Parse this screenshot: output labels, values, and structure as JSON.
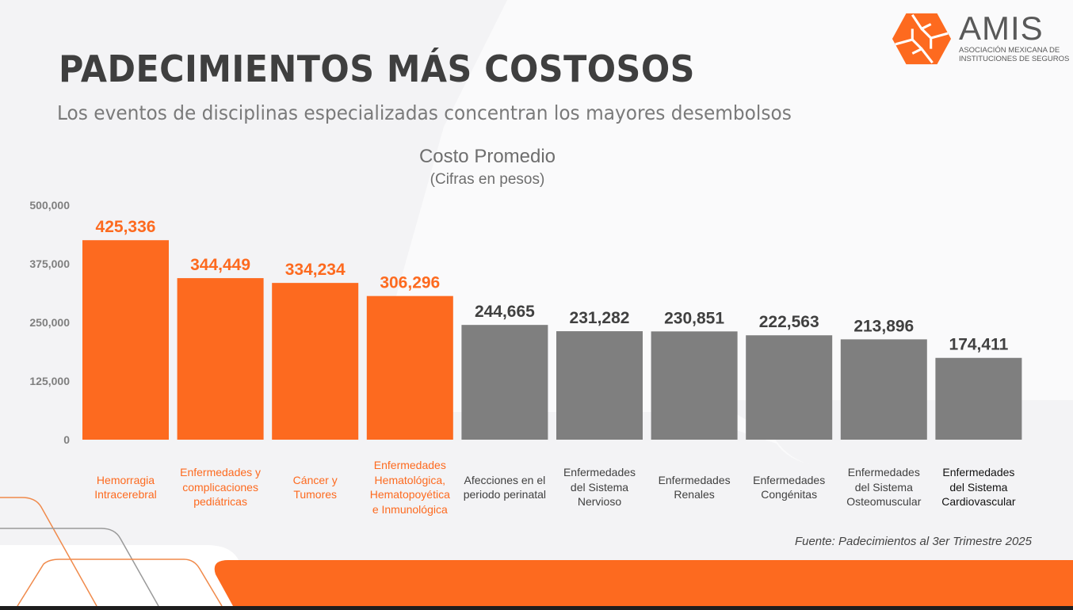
{
  "header": {
    "title": "PADECIMIENTOS MÁS COSTOSOS",
    "subtitle": "Los eventos de disciplinas especializadas concentran los mayores desembolsos"
  },
  "logo": {
    "name": "AMIS",
    "line1": "ASOCIACIÓN MEXICANA DE",
    "line2": "INSTITUCIONES DE SEGUROS",
    "icon": "amis-hexagon-logo-icon"
  },
  "colors": {
    "accent": "#fd6a1f",
    "gray_bar": "#7f7f7f",
    "title": "#3f3f3f",
    "background": "#f3f3f5"
  },
  "source": "Fuente: Padecimientos al 3er Trimestre 2025",
  "chart_data": {
    "type": "bar",
    "title": "Costo Promedio",
    "subtitle": "(Cifras en pesos)",
    "xlabel": "",
    "ylabel": "",
    "ylim": [
      0,
      500000
    ],
    "yticks": [
      0,
      125000,
      250000,
      375000,
      500000
    ],
    "ytick_labels": [
      "0",
      "125,000",
      "250,000",
      "375,000",
      "500,000"
    ],
    "grid": false,
    "categories": [
      "Hemorragia Intracerebral",
      "Enfermedades y complicaciones pediátricas",
      "Cáncer y Tumores",
      "Enfermedades Hematológica, Hematopoyética e Inmunológica",
      "Afecciones en el periodo perinatal",
      "Enfermedades del Sistema Nervioso",
      "Enfermedades Renales",
      "Enfermedades Congénitas",
      "Enfermedades del Sistema Osteomuscular",
      "Enfermedades del Sistema Cardiovascular"
    ],
    "category_lines": [
      [
        "Hemorragia",
        "Intracerebral"
      ],
      [
        "Enfermedades y",
        "complicaciones",
        "pediátricas"
      ],
      [
        "Cáncer y",
        "Tumores"
      ],
      [
        "Enfermedades",
        "Hematológica,",
        "Hematopoyética",
        "e Inmunológica"
      ],
      [
        "Afecciones en el",
        "periodo perinatal"
      ],
      [
        "Enfermedades",
        "del Sistema",
        "Nervioso"
      ],
      [
        "Enfermedades",
        "Renales"
      ],
      [
        "Enfermedades",
        "Congénitas"
      ],
      [
        "Enfermedades",
        "del Sistema",
        "Osteomuscular"
      ],
      [
        "Enfermedades",
        "del Sistema",
        "Cardiovascular"
      ]
    ],
    "values": [
      425336,
      344449,
      334234,
      306296,
      244665,
      231282,
      230851,
      222563,
      213896,
      174411
    ],
    "value_labels": [
      "425,336",
      "344,449",
      "334,234",
      "306,296",
      "244,665",
      "231,282",
      "230,851",
      "222,563",
      "213,896",
      "174,411"
    ],
    "highlighted": [
      true,
      true,
      true,
      true,
      false,
      false,
      false,
      false,
      false,
      false
    ]
  }
}
